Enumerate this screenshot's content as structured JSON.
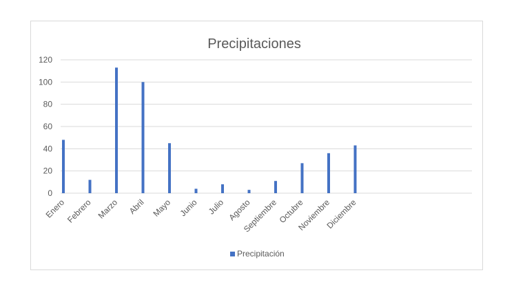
{
  "chart_data": {
    "type": "bar",
    "title": "Precipitaciones",
    "xlabel": "",
    "ylabel": "",
    "categories": [
      "Enero",
      "Febrero",
      "Marzo",
      "Abril",
      "Mayo",
      "Junio",
      "Julio",
      "Agosto",
      "Septiembre",
      "Octubre",
      "Noviembre",
      "Diciembre"
    ],
    "series": [
      {
        "name": "Precipitación",
        "color": "#4472c4",
        "values": [
          48,
          12,
          113,
          100,
          45,
          4,
          8,
          3,
          11,
          27,
          36,
          43
        ]
      }
    ],
    "ylim": [
      0,
      120
    ],
    "yticks": [
      0,
      20,
      40,
      60,
      80,
      100,
      120
    ],
    "grid": true,
    "legend": "bottom"
  }
}
